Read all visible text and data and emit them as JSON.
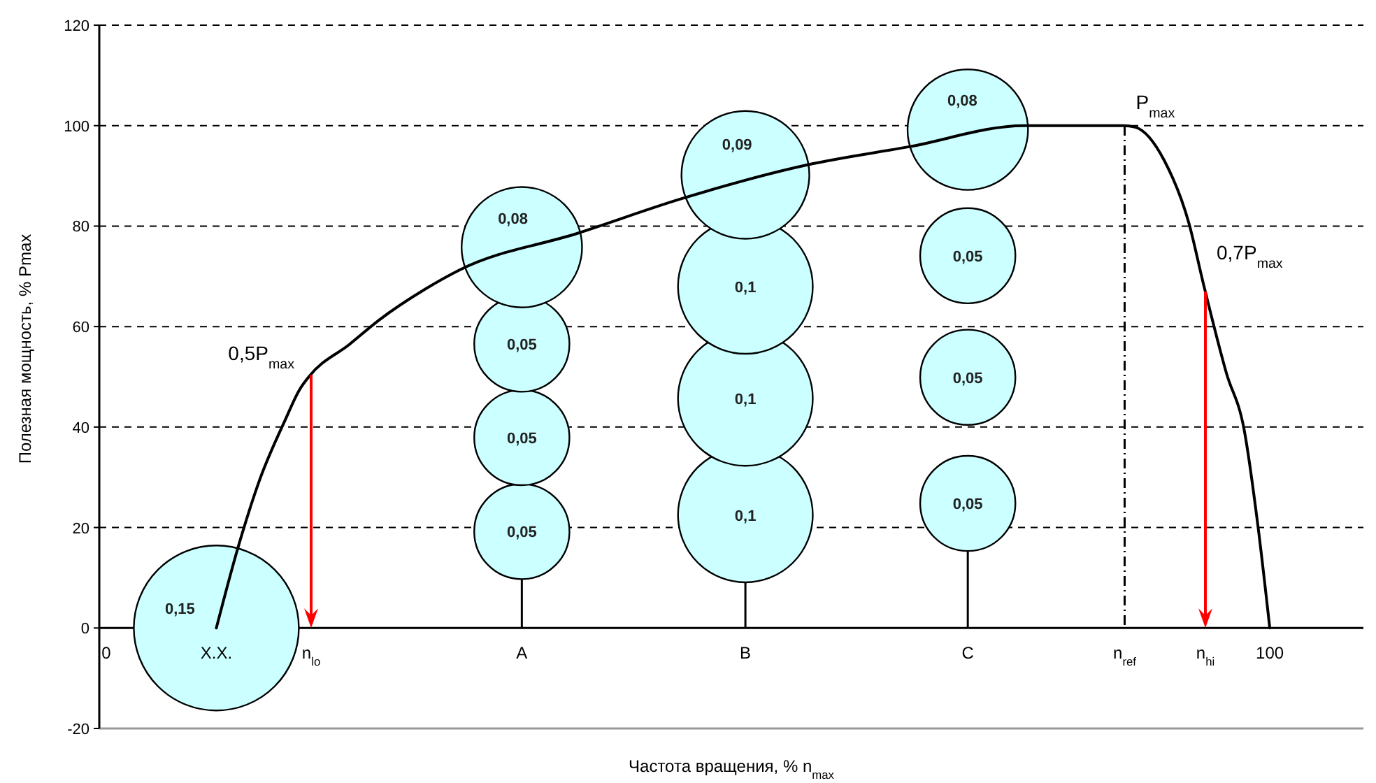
{
  "chart_data": {
    "type": "bubble",
    "xlabel": "Частота вращения, % n$_{max}$",
    "ylabel": "Полезная мощность, % Pmax",
    "xlim": [
      0,
      108
    ],
    "ylim": [
      -20,
      120
    ],
    "xticks": [
      0,
      {
        "value": 10,
        "label": "Х.Х."
      },
      {
        "value": 18.1,
        "label": "n$_{lo}$"
      },
      {
        "value": 36.1,
        "label": "A"
      },
      {
        "value": 55.2,
        "label": "B"
      },
      {
        "value": 74.2,
        "label": "C"
      },
      {
        "value": 87.6,
        "label": "n$_{ref}$"
      },
      {
        "value": 94.5,
        "label": "n$_{hi}$"
      },
      100
    ],
    "yticks": [
      -20,
      0,
      20,
      40,
      60,
      80,
      100,
      120
    ],
    "grid": "y",
    "series": [
      {
        "type": "line",
        "color": "#000000",
        "line_style": "solid",
        "x": [
          10,
          11.8,
          13.7,
          15.9,
          17.1,
          17.9,
          21.4,
          23.9,
          27.8,
          30.8,
          40.9,
          49.8,
          60.5,
          69.2,
          79,
          87.5,
          88.5,
          91,
          93.1,
          94.3,
          96.3,
          97.8,
          99,
          100
        ],
        "values": [
          0,
          15.6,
          29.5,
          41.5,
          47.4,
          50,
          56.5,
          61.3,
          67.4,
          71.3,
          78.6,
          85.5,
          92.2,
          95.8,
          100,
          100,
          99.7,
          93,
          80.5,
          68.8,
          50.7,
          39.6,
          20.1,
          0
        ]
      },
      {
        "color": "#ccffff",
        "x": [
          10,
          36.1,
          36.1,
          36.1,
          36.1,
          55.2,
          55.2,
          55.2,
          55.2,
          74.2,
          74.2,
          74.2,
          74.2
        ],
        "values": [
          0,
          19.2,
          37.9,
          56.5,
          75.8,
          22.5,
          45.7,
          68,
          90.2,
          24.8,
          49.9,
          74.1,
          99.2
        ],
        "sizes": [
          1,
          0.333,
          0.333,
          0.333,
          0.533,
          0.667,
          0.667,
          0.667,
          0.6,
          0.333,
          0.333,
          0.333,
          0.533
        ]
      }
    ],
    "ref_lines": [
      {
        "axis": "x",
        "value": 18.1,
        "color": "#ff0000",
        "line_style": "solid"
      },
      {
        "axis": "x",
        "value": 94.5,
        "color": "#ff0000",
        "line_style": "solid"
      },
      {
        "axis": "x",
        "value": 87.6,
        "color": "#000000",
        "line_style": "dashed"
      }
    ],
    "annotations": [
      {
        "text": "0,15",
        "x": 10,
        "y": 0
      },
      {
        "text": "0,05",
        "x": 36.1,
        "y": 19.2
      },
      {
        "text": "0,05",
        "x": 36.1,
        "y": 37.9
      },
      {
        "text": "0,05",
        "x": 36.1,
        "y": 56.5
      },
      {
        "text": "0,08",
        "x": 36.1,
        "y": 75.8
      },
      {
        "text": "0,1",
        "x": 55.2,
        "y": 22.5
      },
      {
        "text": "0,1",
        "x": 55.2,
        "y": 45.7
      },
      {
        "text": "0,1",
        "x": 55.2,
        "y": 68
      },
      {
        "text": "0,09",
        "x": 55.2,
        "y": 90.2
      },
      {
        "text": "0,05",
        "x": 74.2,
        "y": 24.8
      },
      {
        "text": "0,05",
        "x": 74.2,
        "y": 49.9
      },
      {
        "text": "0,05",
        "x": 74.2,
        "y": 74.1
      },
      {
        "text": "0,08",
        "x": 74.2,
        "y": 99.2
      },
      {
        "text": "0,5P$_{max}$",
        "x": 18.1,
        "y": 50
      },
      {
        "text": "P$_{max}$",
        "x": 87.6,
        "y": 100
      },
      {
        "text": "0,7P$_{max}$",
        "x": 94.5,
        "y": 70
      }
    ]
  }
}
